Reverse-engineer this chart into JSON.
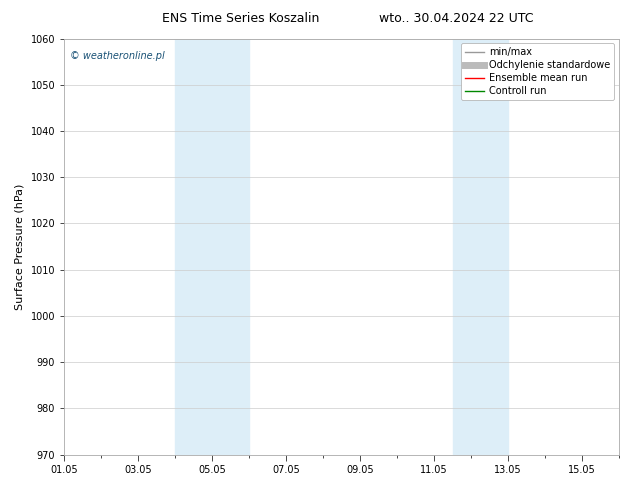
{
  "title_left": "ENS Time Series Koszalin",
  "title_right": "wto.. 30.04.2024 22 UTC",
  "ylabel": "Surface Pressure (hPa)",
  "ylim": [
    970,
    1060
  ],
  "yticks": [
    970,
    980,
    990,
    1000,
    1010,
    1020,
    1030,
    1040,
    1050,
    1060
  ],
  "xlim": [
    0,
    15
  ],
  "xtick_labels": [
    "01.05",
    "03.05",
    "05.05",
    "07.05",
    "09.05",
    "11.05",
    "13.05",
    "15.05"
  ],
  "xtick_positions": [
    0,
    2,
    4,
    6,
    8,
    10,
    12,
    14
  ],
  "shaded_bands": [
    {
      "x_start": 3.0,
      "x_end": 5.0,
      "color": "#ddeef8"
    },
    {
      "x_start": 10.5,
      "x_end": 12.0,
      "color": "#ddeef8"
    }
  ],
  "legend_entries": [
    {
      "label": "min/max",
      "color": "#999999",
      "lw": 1.0,
      "style": "-"
    },
    {
      "label": "Odchylenie standardowe",
      "color": "#bbbbbb",
      "lw": 5,
      "style": "-"
    },
    {
      "label": "Ensemble mean run",
      "color": "#ff0000",
      "lw": 1.0,
      "style": "-"
    },
    {
      "label": "Controll run",
      "color": "#008800",
      "lw": 1.0,
      "style": "-"
    }
  ],
  "watermark": "© weatheronline.pl",
  "watermark_color": "#1a5276",
  "bg_color": "#ffffff",
  "plot_bg_color": "#ffffff",
  "grid_color": "#cccccc",
  "title_fontsize": 9,
  "ylabel_fontsize": 8,
  "tick_fontsize": 7,
  "legend_fontsize": 7,
  "watermark_fontsize": 7
}
